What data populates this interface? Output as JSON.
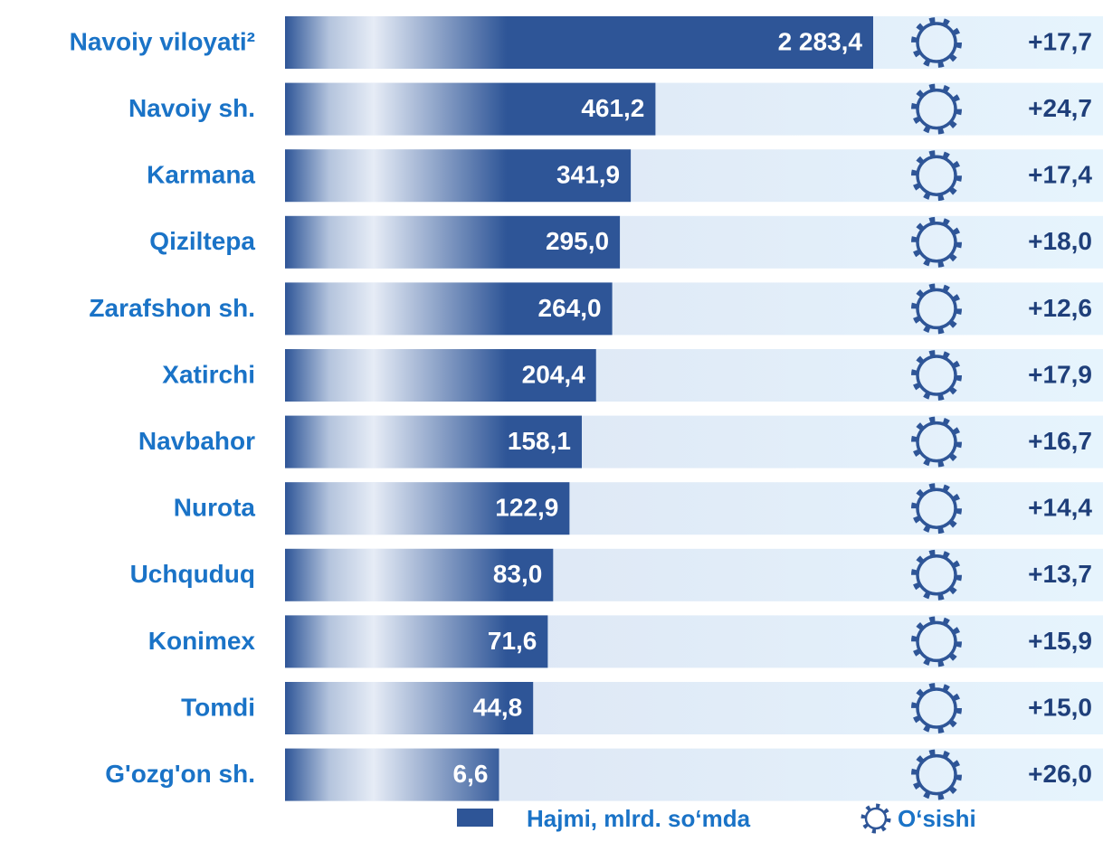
{
  "chart_data": {
    "type": "bar",
    "orientation": "horizontal",
    "scale": "sqrt",
    "categories": [
      "Navoiy viloyati²",
      "Navoiy sh.",
      "Karmana",
      "Qiziltepa",
      "Zarafshon sh.",
      "Xatirchi",
      "Navbahor",
      "Nurota",
      "Uchquduq",
      "Konimex",
      "Tomdi",
      "G'ozg'on sh."
    ],
    "series": [
      {
        "name": "Hajmi, mlrd. so‘mda",
        "color": "#2e5597",
        "values": [
          2283.4,
          461.2,
          341.9,
          295.0,
          264.0,
          204.4,
          158.1,
          122.9,
          83.0,
          71.6,
          44.8,
          6.6
        ],
        "value_labels": [
          "2 283,4",
          "461,2",
          "341,9",
          "295,0",
          "264,0",
          "204,4",
          "158,1",
          "122,9",
          "83,0",
          "71,6",
          "44,8",
          "6,6"
        ]
      },
      {
        "name": "O‘sishi",
        "color": "#2e5597",
        "values": [
          17.7,
          24.7,
          17.4,
          18.0,
          12.6,
          17.9,
          16.7,
          14.4,
          13.7,
          15.9,
          15.0,
          26.0
        ],
        "value_labels": [
          "+17,7",
          "+24,7",
          "+17,4",
          "+18,0",
          "+12,6",
          "+17,9",
          "+16,7",
          "+14,4",
          "+13,7",
          "+15,9",
          "+15,0",
          "+26,0"
        ]
      }
    ]
  }
}
